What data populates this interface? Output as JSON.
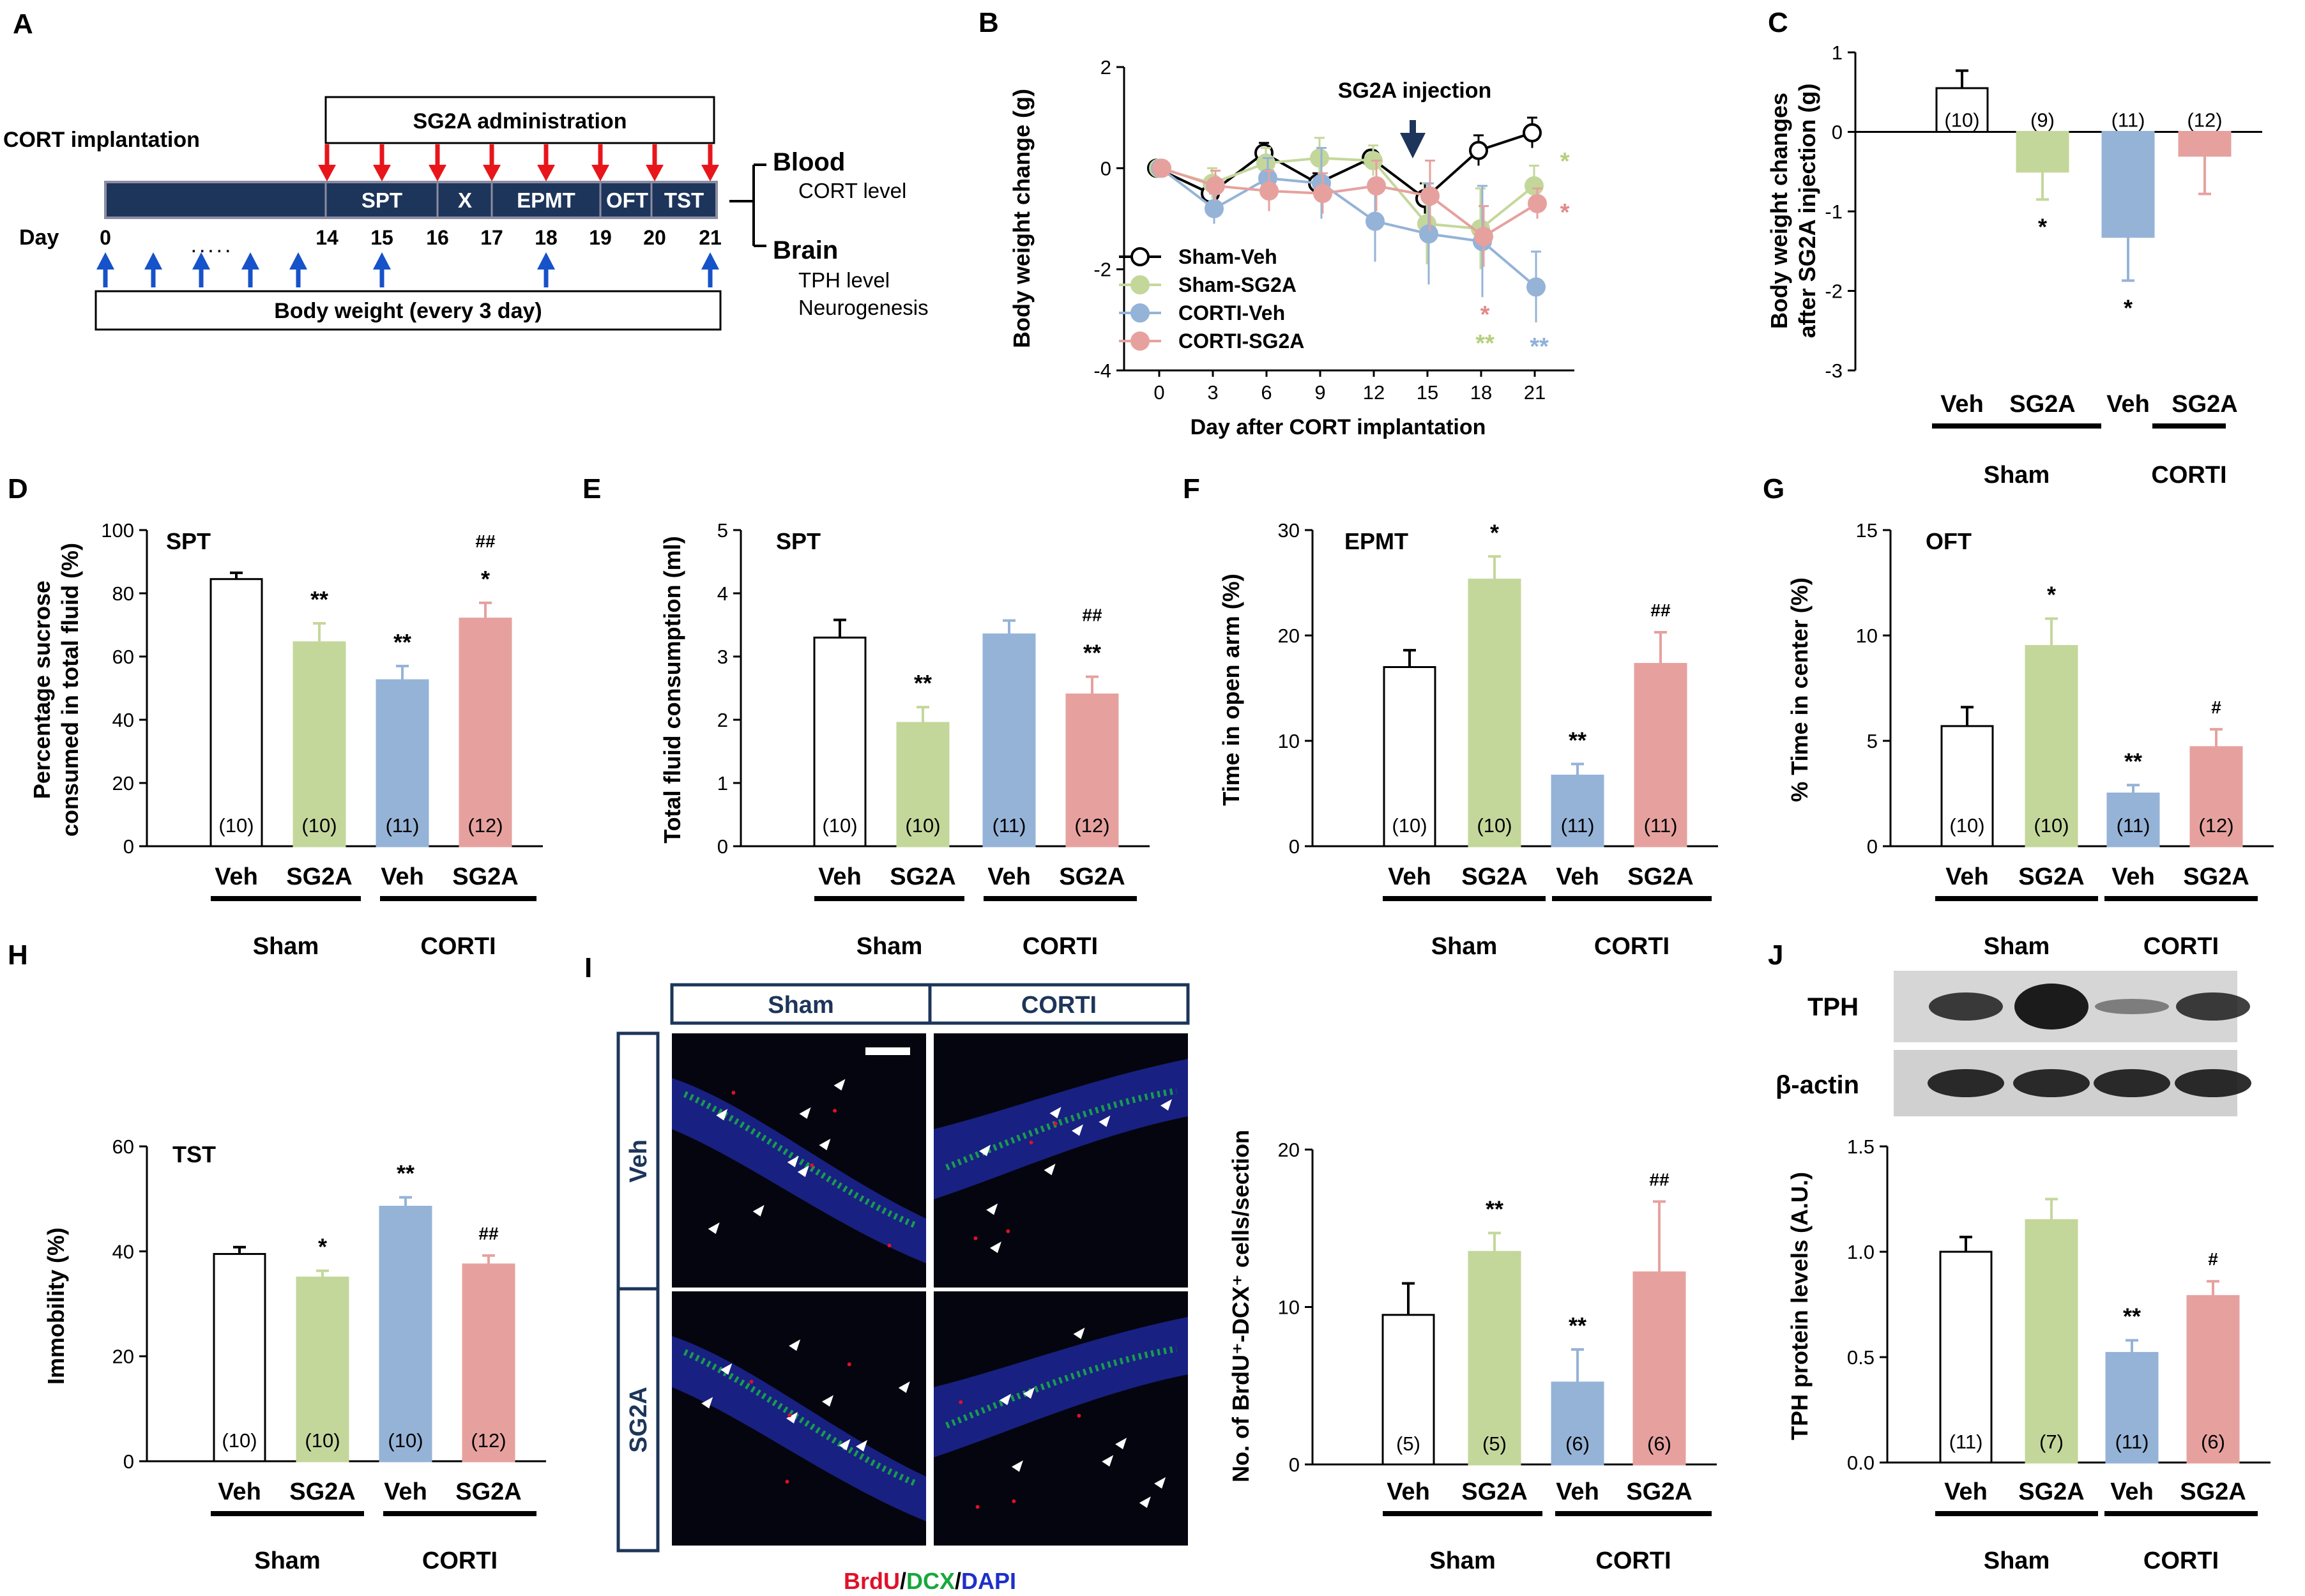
{
  "colors": {
    "sham_veh": "#ffffff",
    "sham_sg2a": "#c4d79b",
    "corti_veh": "#95b3d7",
    "corti_sg2a": "#e6a19e",
    "red_arrow": "#e8151b",
    "blue_arrow": "#1652c9",
    "navy": "#1d355a",
    "green_star": "#b6cf7f",
    "blue_star": "#8fb1d8",
    "pink_star": "#e48a86"
  },
  "panel_letters": [
    "A",
    "B",
    "C",
    "D",
    "E",
    "F",
    "G",
    "H",
    "I",
    "J"
  ],
  "timeline": {
    "cort_implantation": "CORT implantation",
    "sg2a_administration": "SG2A administration",
    "day_label": "Day",
    "days": [
      "0",
      "14",
      "15",
      "16",
      "17",
      "18",
      "19",
      "20",
      "21"
    ],
    "dots": ". . . . .",
    "tests": [
      "SPT",
      "X",
      "EPMT",
      "OFT",
      "TST"
    ],
    "body_weight": "Body weight (every 3 day)",
    "blood": "Blood",
    "blood_item": "CORT level",
    "brain": "Brain",
    "brain_items": [
      "TPH level",
      "Neurogenesis"
    ]
  },
  "groups": {
    "sub": [
      "Veh",
      "SG2A",
      "Veh",
      "SG2A"
    ],
    "main": [
      "Sham",
      "CORTI"
    ]
  },
  "micro": {
    "cols": [
      "Sham",
      "CORTI"
    ],
    "rows": [
      "Veh",
      "SG2A"
    ],
    "stain": {
      "brdu": "BrdU",
      "sep1": "/",
      "dcx": "DCX",
      "sep2": "/",
      "dapi": "DAPI"
    }
  },
  "western": {
    "tph_label": "TPH",
    "actin_label": "β-actin"
  },
  "chart_data": [
    {
      "id": "B",
      "type": "line",
      "title": "SG2A injection",
      "xlabel": "Day after CORT implantation",
      "ylabel": "Body weight change (g)",
      "ylim": [
        -4,
        2
      ],
      "yticks": [
        "2",
        "0",
        "-2",
        "-4"
      ],
      "x": [
        "0",
        "3",
        "6",
        "9",
        "12",
        "15",
        "18",
        "21"
      ],
      "series": [
        {
          "name": "Sham-Veh",
          "values": [
            0,
            -0.5,
            0.3,
            -0.3,
            0.2,
            -0.6,
            0.35,
            0.7
          ],
          "errors": [
            0,
            0.1,
            0.2,
            0.2,
            0.15,
            0.3,
            0.3,
            0.3
          ]
        },
        {
          "name": "Sham-SG2A",
          "values": [
            0,
            -0.3,
            0.1,
            0.2,
            0.15,
            -1.1,
            -1.2,
            -0.35
          ],
          "errors": [
            0,
            0.3,
            0.3,
            0.4,
            0.3,
            0.8,
            0.8,
            0.4
          ]
        },
        {
          "name": "CORTI-Veh",
          "values": [
            0,
            -0.8,
            -0.2,
            -0.3,
            -1.05,
            -1.3,
            -1.45,
            -2.35
          ],
          "errors": [
            0,
            0.3,
            0.4,
            0.7,
            0.8,
            1.0,
            1.1,
            0.7
          ]
        },
        {
          "name": "CORTI-SG2A",
          "values": [
            0,
            -0.35,
            -0.45,
            -0.5,
            -0.35,
            -0.55,
            -1.35,
            -0.7
          ],
          "errors": [
            0,
            0.3,
            0.4,
            0.4,
            0.5,
            0.7,
            0.6,
            0.3
          ]
        }
      ],
      "annotations": [
        {
          "at": "21",
          "text": "*",
          "color": "green_star"
        },
        {
          "at": "21",
          "text": "*",
          "color": "pink_star"
        },
        {
          "at": "18",
          "text": "*",
          "color": "pink_star"
        },
        {
          "at": "18",
          "text": "**",
          "color": "green_star"
        },
        {
          "at": "21",
          "text": "**",
          "color": "blue_star"
        }
      ]
    },
    {
      "id": "C",
      "type": "bar",
      "title": "",
      "ylabel": "Body weight changes after SG2A injection (g)",
      "ylim": [
        -3,
        1
      ],
      "yticks": [
        "1",
        "0",
        "-1",
        "-2",
        "-3"
      ],
      "values": [
        0.55,
        -0.5,
        -1.32,
        -0.3
      ],
      "errors": [
        0.22,
        0.35,
        0.55,
        0.48
      ],
      "n": [
        "(10)",
        "(9)",
        "(11)",
        "(12)"
      ],
      "stars": [
        "",
        "*",
        "*",
        ""
      ],
      "hash": [
        "",
        "",
        "",
        ""
      ]
    },
    {
      "id": "D",
      "type": "bar",
      "title": "SPT",
      "ylabel": "Percentage sucrose consumed in total fluid (%)",
      "ylim": [
        0,
        100
      ],
      "yticks": [
        "100",
        "80",
        "60",
        "40",
        "20",
        "0"
      ],
      "values": [
        84.5,
        64.5,
        52.5,
        72
      ],
      "errors": [
        2,
        6,
        4.5,
        5
      ],
      "n": [
        "(10)",
        "(10)",
        "(11)",
        "(12)"
      ],
      "stars": [
        "",
        "**",
        "**",
        "*"
      ],
      "hash": [
        "",
        "",
        "",
        "##"
      ]
    },
    {
      "id": "E",
      "type": "bar",
      "title": "SPT",
      "ylabel": "Total fluid consumption (ml)",
      "ylim": [
        0,
        5
      ],
      "yticks": [
        "5",
        "4",
        "3",
        "2",
        "1",
        "0"
      ],
      "values": [
        3.3,
        1.95,
        3.35,
        2.4
      ],
      "errors": [
        0.28,
        0.25,
        0.22,
        0.28
      ],
      "n": [
        "(10)",
        "(10)",
        "(11)",
        "(12)"
      ],
      "stars": [
        "",
        "**",
        "",
        "**"
      ],
      "hash": [
        "",
        "",
        "",
        "##"
      ]
    },
    {
      "id": "F",
      "type": "bar",
      "title": "EPMT",
      "ylabel": "Time in open arm (%)",
      "ylim": [
        0,
        30
      ],
      "yticks": [
        "30",
        "20",
        "10",
        "0"
      ],
      "values": [
        17,
        25.3,
        6.7,
        17.3
      ],
      "errors": [
        1.6,
        2.2,
        1.1,
        3
      ],
      "n": [
        "(10)",
        "(10)",
        "(11)",
        "(11)"
      ],
      "stars": [
        "",
        "*",
        "**",
        ""
      ],
      "hash": [
        "",
        "",
        "",
        "##"
      ]
    },
    {
      "id": "G",
      "type": "bar",
      "title": "OFT",
      "ylabel": "% Time in center (%)",
      "ylim": [
        0,
        15
      ],
      "yticks": [
        "15",
        "10",
        "5",
        "0"
      ],
      "values": [
        5.7,
        9.5,
        2.5,
        4.7
      ],
      "errors": [
        0.9,
        1.3,
        0.4,
        0.85
      ],
      "n": [
        "(10)",
        "(10)",
        "(11)",
        "(12)"
      ],
      "stars": [
        "",
        "*",
        "**",
        ""
      ],
      "hash": [
        "",
        "",
        "",
        "#"
      ]
    },
    {
      "id": "H",
      "type": "bar",
      "title": "TST",
      "ylabel": "Immobility (%)",
      "ylim": [
        0,
        60
      ],
      "yticks": [
        "60",
        "40",
        "20",
        "0"
      ],
      "values": [
        39.5,
        35,
        48.5,
        37.5
      ],
      "errors": [
        1.3,
        1.3,
        1.8,
        1.7
      ],
      "n": [
        "(10)",
        "(10)",
        "(10)",
        "(12)"
      ],
      "stars": [
        "",
        "*",
        "**",
        ""
      ],
      "hash": [
        "",
        "",
        "",
        "##"
      ]
    },
    {
      "id": "I",
      "type": "bar",
      "title": "",
      "ylabel": "No. of BrdU⁺-DCX⁺ cells/section",
      "ylim": [
        0,
        20
      ],
      "yticks": [
        "20",
        "10",
        "0"
      ],
      "values": [
        9.5,
        13.5,
        5.2,
        12.2
      ],
      "errors": [
        2,
        1.2,
        2.1,
        4.5
      ],
      "n": [
        "(5)",
        "(5)",
        "(6)",
        "(6)"
      ],
      "stars": [
        "",
        "**",
        "**",
        ""
      ],
      "hash": [
        "",
        "",
        "",
        "##"
      ]
    },
    {
      "id": "J",
      "type": "bar",
      "title": "",
      "ylabel": "TPH protein levels (A.U.)",
      "ylim": [
        0,
        1.5
      ],
      "yticks": [
        "1.5",
        "1.0",
        "0.5",
        "0.0"
      ],
      "values": [
        1.0,
        1.15,
        0.52,
        0.79
      ],
      "errors": [
        0.07,
        0.1,
        0.06,
        0.07
      ],
      "n": [
        "(11)",
        "(7)",
        "(11)",
        "(6)"
      ],
      "stars": [
        "",
        "",
        "**",
        ""
      ],
      "hash": [
        "",
        "",
        "",
        "#"
      ]
    }
  ]
}
